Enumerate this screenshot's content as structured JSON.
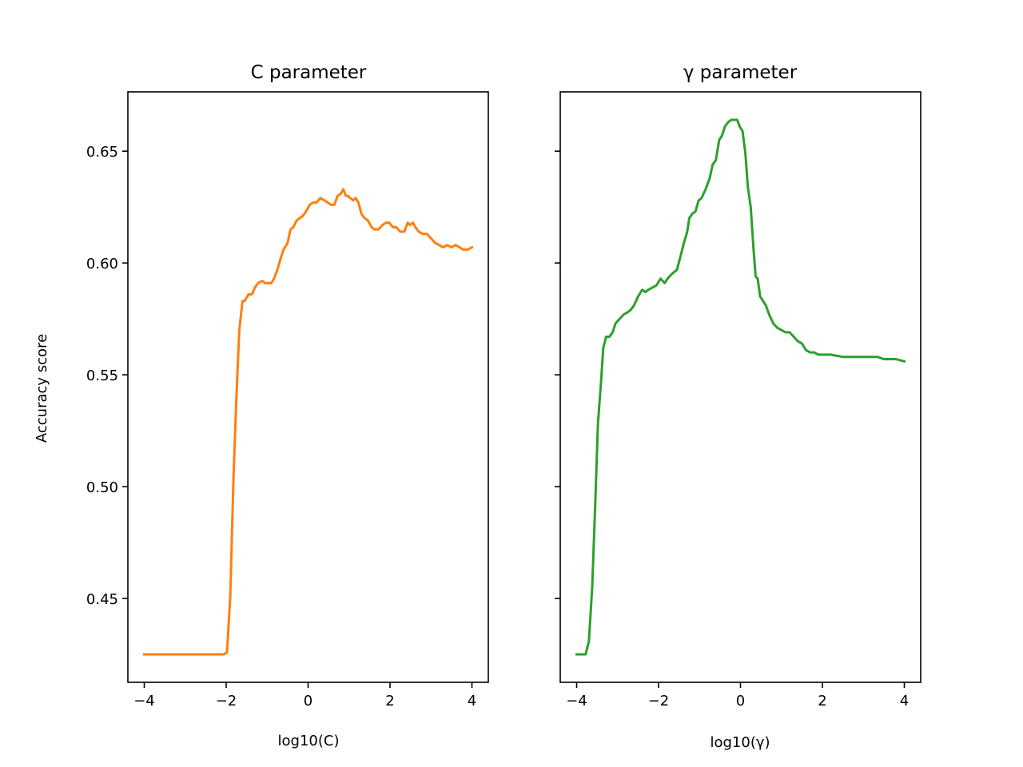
{
  "colors": {
    "c_series": "#ff7f0e",
    "gamma_series": "#2ca02c",
    "axes": "#000000"
  },
  "y_axis": {
    "label": "Accuracy score",
    "ylim": [
      0.4125,
      0.6765
    ],
    "ticks": [
      0.45,
      0.5,
      0.55,
      0.6,
      0.65
    ],
    "tick_labels": [
      "0.45",
      "0.50",
      "0.55",
      "0.60",
      "0.65"
    ]
  },
  "chart_data": [
    {
      "type": "line",
      "title": "C parameter",
      "xlabel": "log10(C)",
      "ylabel": "Accuracy score",
      "xlim": [
        -4.4,
        4.4
      ],
      "ylim": [
        0.4125,
        0.6765
      ],
      "x_ticks": [
        -4,
        -2,
        0,
        2,
        4
      ],
      "x_tick_labels": [
        "−4",
        "−2",
        "0",
        "2",
        "4"
      ],
      "grid": false,
      "series": [
        {
          "color": "#ff7f0e",
          "x": [
            -4.0,
            -3.0,
            -2.2,
            -2.05,
            -1.98,
            -1.9,
            -1.82,
            -1.75,
            -1.68,
            -1.6,
            -1.55,
            -1.45,
            -1.37,
            -1.3,
            -1.22,
            -1.12,
            -1.05,
            -0.98,
            -0.9,
            -0.83,
            -0.75,
            -0.67,
            -0.6,
            -0.5,
            -0.43,
            -0.36,
            -0.28,
            -0.21,
            -0.13,
            -0.05,
            0.04,
            0.12,
            0.2,
            0.3,
            0.4,
            0.48,
            0.56,
            0.64,
            0.72,
            0.8,
            0.86,
            0.92,
            0.97,
            1.03,
            1.1,
            1.16,
            1.23,
            1.3,
            1.38,
            1.46,
            1.55,
            1.62,
            1.72,
            1.82,
            1.9,
            1.98,
            2.07,
            2.15,
            2.25,
            2.35,
            2.43,
            2.49,
            2.56,
            2.62,
            2.7,
            2.8,
            2.9,
            3.0,
            3.1,
            3.2,
            3.3,
            3.4,
            3.5,
            3.6,
            3.7,
            3.78,
            3.84,
            3.9,
            4.0
          ],
          "y": [
            0.425,
            0.425,
            0.425,
            0.425,
            0.426,
            0.451,
            0.505,
            0.54,
            0.57,
            0.583,
            0.583,
            0.586,
            0.586,
            0.589,
            0.591,
            0.592,
            0.591,
            0.591,
            0.591,
            0.593,
            0.597,
            0.602,
            0.606,
            0.609,
            0.615,
            0.616,
            0.619,
            0.62,
            0.621,
            0.623,
            0.626,
            0.627,
            0.627,
            0.629,
            0.628,
            0.627,
            0.626,
            0.626,
            0.63,
            0.631,
            0.633,
            0.63,
            0.63,
            0.629,
            0.628,
            0.629,
            0.627,
            0.622,
            0.62,
            0.619,
            0.616,
            0.615,
            0.615,
            0.617,
            0.618,
            0.618,
            0.616,
            0.616,
            0.614,
            0.614,
            0.618,
            0.617,
            0.618,
            0.616,
            0.614,
            0.613,
            0.613,
            0.611,
            0.609,
            0.608,
            0.607,
            0.608,
            0.607,
            0.608,
            0.607,
            0.606,
            0.606,
            0.606,
            0.607
          ]
        }
      ]
    },
    {
      "type": "line",
      "title": "γ parameter",
      "xlabel": "log10(γ)",
      "ylabel": "",
      "xlim": [
        -4.4,
        4.4
      ],
      "ylim": [
        0.4125,
        0.6765
      ],
      "x_ticks": [
        -4,
        -2,
        0,
        2,
        4
      ],
      "x_tick_labels": [
        "−4",
        "−2",
        "0",
        "2",
        "4"
      ],
      "grid": false,
      "series": [
        {
          "color": "#2ca02c",
          "x": [
            -4.0,
            -3.9,
            -3.78,
            -3.7,
            -3.62,
            -3.55,
            -3.48,
            -3.4,
            -3.35,
            -3.28,
            -3.2,
            -3.12,
            -3.05,
            -2.95,
            -2.85,
            -2.75,
            -2.68,
            -2.6,
            -2.5,
            -2.4,
            -2.32,
            -2.25,
            -2.15,
            -2.05,
            -1.95,
            -1.9,
            -1.85,
            -1.78,
            -1.68,
            -1.55,
            -1.45,
            -1.38,
            -1.3,
            -1.25,
            -1.18,
            -1.1,
            -1.02,
            -0.95,
            -0.85,
            -0.75,
            -0.68,
            -0.6,
            -0.52,
            -0.45,
            -0.38,
            -0.3,
            -0.22,
            -0.15,
            -0.08,
            -0.02,
            0.05,
            0.12,
            0.18,
            0.25,
            0.32,
            0.37,
            0.42,
            0.48,
            0.55,
            0.62,
            0.7,
            0.8,
            0.9,
            1.0,
            1.1,
            1.2,
            1.3,
            1.4,
            1.5,
            1.6,
            1.7,
            1.8,
            1.9,
            2.0,
            2.2,
            2.5,
            2.6,
            3.0,
            3.35,
            3.5,
            3.8,
            4.0
          ],
          "y": [
            0.425,
            0.425,
            0.425,
            0.431,
            0.455,
            0.49,
            0.528,
            0.548,
            0.562,
            0.567,
            0.567,
            0.569,
            0.573,
            0.575,
            0.577,
            0.578,
            0.579,
            0.581,
            0.585,
            0.588,
            0.587,
            0.588,
            0.589,
            0.59,
            0.593,
            0.592,
            0.591,
            0.593,
            0.595,
            0.597,
            0.604,
            0.609,
            0.614,
            0.62,
            0.622,
            0.623,
            0.628,
            0.629,
            0.633,
            0.638,
            0.644,
            0.646,
            0.655,
            0.657,
            0.661,
            0.663,
            0.664,
            0.664,
            0.664,
            0.661,
            0.659,
            0.649,
            0.634,
            0.625,
            0.606,
            0.594,
            0.593,
            0.585,
            0.583,
            0.581,
            0.577,
            0.573,
            0.571,
            0.57,
            0.569,
            0.569,
            0.567,
            0.565,
            0.564,
            0.561,
            0.56,
            0.56,
            0.559,
            0.559,
            0.559,
            0.558,
            0.558,
            0.558,
            0.558,
            0.557,
            0.557,
            0.556
          ]
        }
      ]
    }
  ]
}
